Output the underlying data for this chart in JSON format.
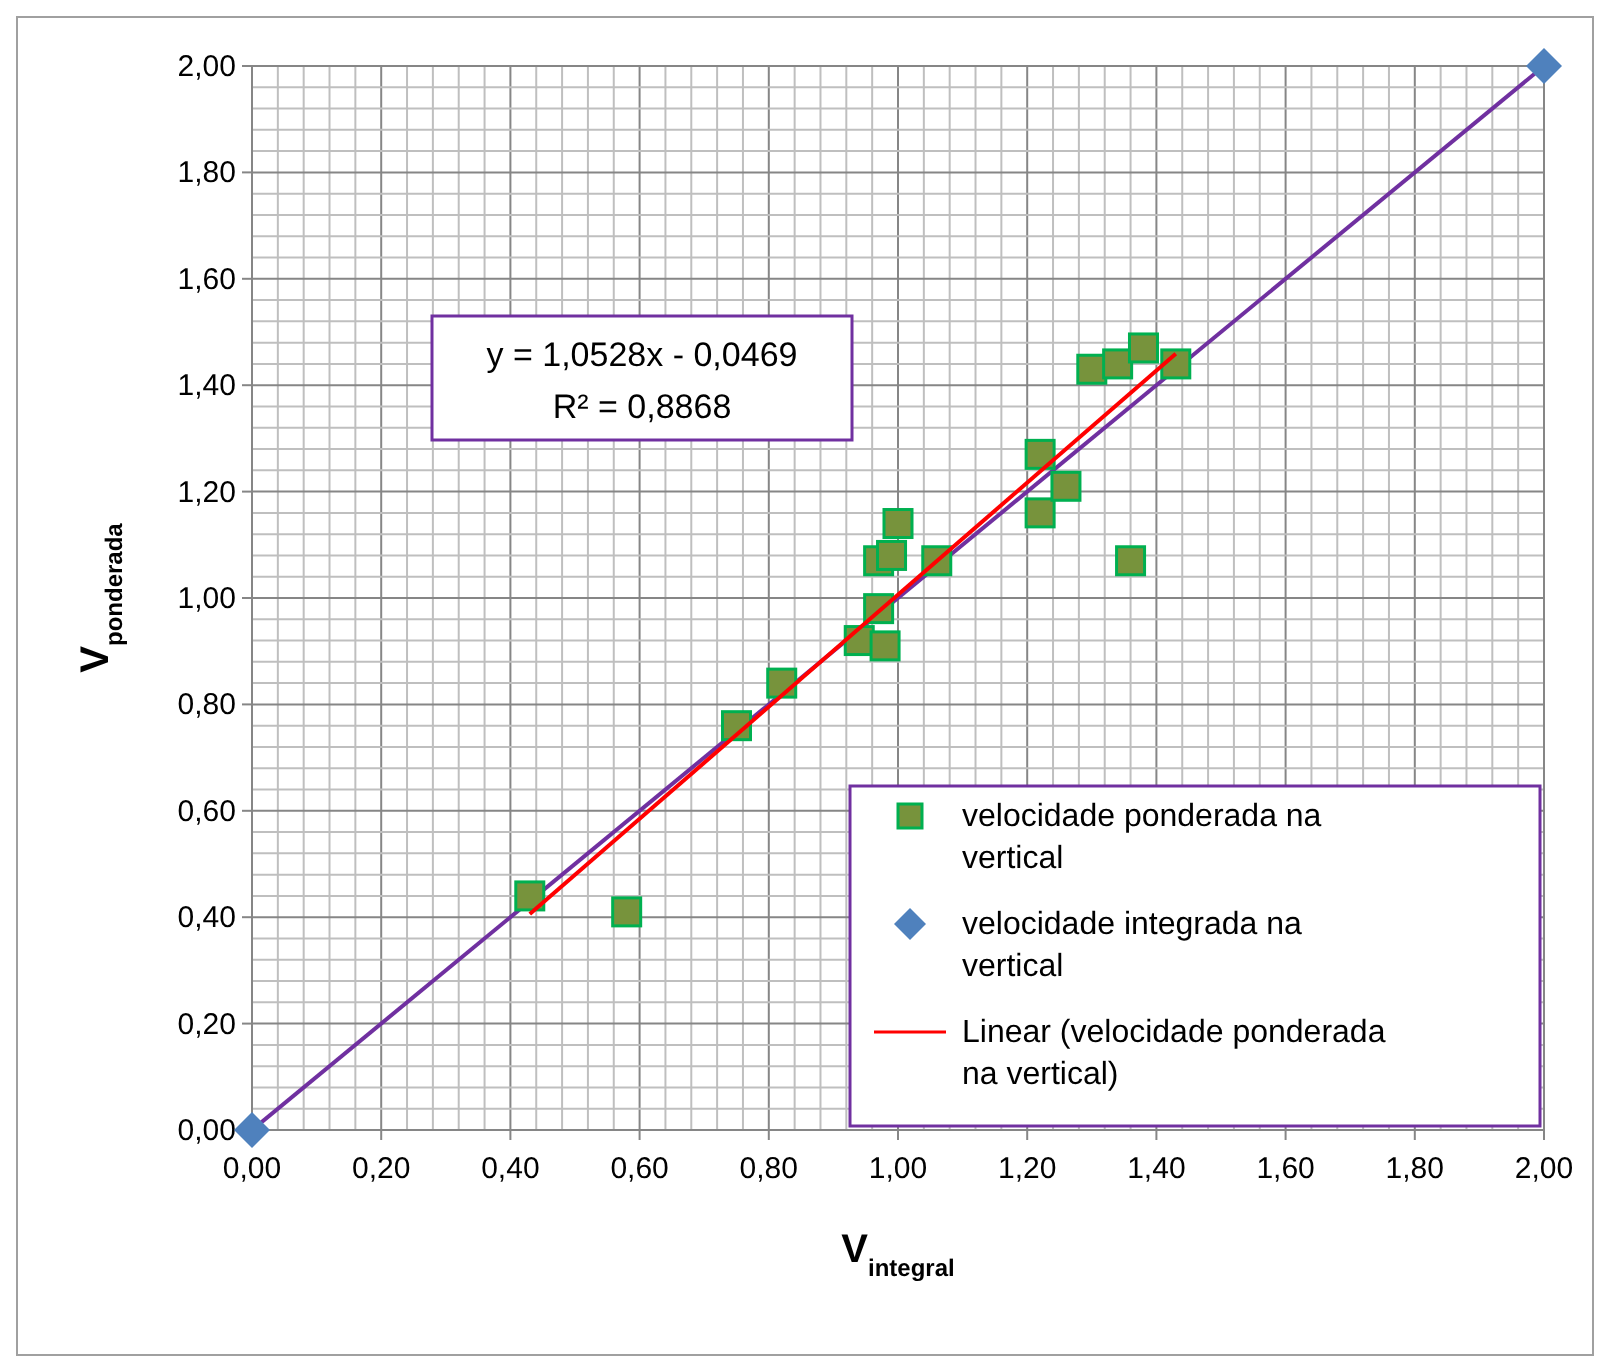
{
  "chart_data": {
    "type": "scatter",
    "xlabel": "V$_{integral}$",
    "ylabel": "V$_{ponderada}$",
    "xlim": [
      0,
      2
    ],
    "ylim": [
      0,
      2
    ],
    "xticks": [
      {
        "value": 0,
        "label": "0,00"
      },
      {
        "value": 0.2,
        "label": "0,20"
      },
      {
        "value": 0.4,
        "label": "0,40"
      },
      {
        "value": 0.6,
        "label": "0,60"
      },
      {
        "value": 0.8,
        "label": "0,80"
      },
      {
        "value": 1,
        "label": "1,00"
      },
      {
        "value": 1.2,
        "label": "1,20"
      },
      {
        "value": 1.4,
        "label": "1,40"
      },
      {
        "value": 1.6,
        "label": "1,60"
      },
      {
        "value": 1.8,
        "label": "1,80"
      },
      {
        "value": 2,
        "label": "2,00"
      }
    ],
    "yticks": [
      {
        "value": 0,
        "label": "0,00"
      },
      {
        "value": 0.2,
        "label": "0,20"
      },
      {
        "value": 0.4,
        "label": "0,40"
      },
      {
        "value": 0.6,
        "label": "0,60"
      },
      {
        "value": 0.8,
        "label": "0,80"
      },
      {
        "value": 1,
        "label": "1,00"
      },
      {
        "value": 1.2,
        "label": "1,20"
      },
      {
        "value": 1.4,
        "label": "1,40"
      },
      {
        "value": 1.6,
        "label": "1,60"
      },
      {
        "value": 1.8,
        "label": "1,80"
      },
      {
        "value": 2,
        "label": "2,00"
      }
    ],
    "grid": true,
    "legend": "bottom right",
    "annotations": [
      "y = 1,0528x - 0,0469",
      "R² = 0,8868"
    ],
    "series": [
      {
        "type": "line",
        "color": "#7030a0",
        "marker": "none",
        "x": [
          0,
          2
        ],
        "values": [
          0,
          2
        ]
      },
      {
        "name": "velocidade ponderada na vertical",
        "type": "scatter",
        "marker": "square",
        "color": "#77933c",
        "x": [
          0.43,
          0.58,
          0.75,
          0.82,
          0.94,
          0.98,
          0.97,
          0.97,
          0.99,
          1.0,
          1.06,
          1.22,
          1.22,
          1.26,
          1.36,
          1.3,
          1.34,
          1.38,
          1.43
        ],
        "values": [
          0.44,
          0.41,
          0.76,
          0.84,
          0.92,
          0.91,
          0.98,
          1.07,
          1.08,
          1.14,
          1.07,
          1.27,
          1.16,
          1.21,
          1.07,
          1.43,
          1.44,
          1.47,
          1.44
        ]
      },
      {
        "name": "velocidade integrada na vertical",
        "type": "scatter",
        "marker": "diamond",
        "color": "#4f81bd",
        "x": [
          0,
          2
        ],
        "values": [
          0,
          2
        ]
      },
      {
        "name": "Linear (velocidade ponderada na vertical)",
        "type": "line",
        "marker": "none",
        "color": "#ff0000",
        "x": [
          0.43,
          1.43
        ],
        "values": [
          0.406,
          1.459
        ]
      }
    ]
  }
}
